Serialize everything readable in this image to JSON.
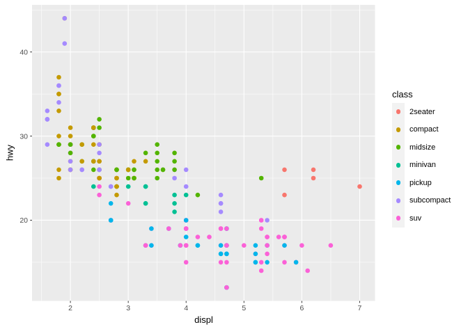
{
  "figure": {
    "background": "#FFFFFF",
    "panel_background": "#EBEBEB",
    "grid_color": "#FFFFFF",
    "axis_text_color": "#4D4D4D",
    "tick_mark_color": "#333333",
    "legend_key_background": "#F2F2F2"
  },
  "chart_data": {
    "type": "scatter",
    "title": "",
    "xlabel": "displ",
    "ylabel": "hwy",
    "x_ticks": [
      2,
      3,
      4,
      5,
      6,
      7
    ],
    "y_ticks": [
      20,
      30,
      40
    ],
    "x_minor_ticks": [
      1.5,
      2.5,
      3.5,
      4.5,
      5.5,
      6.5
    ],
    "y_minor_ticks": [
      15,
      25,
      35,
      45
    ],
    "x_domain": [
      1.337,
      7.265
    ],
    "y_domain": [
      10.4,
      45.6
    ],
    "grid": true,
    "legend_position": "right",
    "legend": {
      "title": "class",
      "entries": [
        {
          "label": "2seater",
          "color": "#F8766D"
        },
        {
          "label": "compact",
          "color": "#C49A00"
        },
        {
          "label": "midsize",
          "color": "#53B400"
        },
        {
          "label": "minivan",
          "color": "#00C094"
        },
        {
          "label": "pickup",
          "color": "#00B6EB"
        },
        {
          "label": "subcompact",
          "color": "#A58AFF"
        },
        {
          "label": "suv",
          "color": "#FB61D7"
        }
      ]
    },
    "points": [
      [
        1.8,
        29,
        "compact"
      ],
      [
        1.8,
        29,
        "compact"
      ],
      [
        2.0,
        31,
        "compact"
      ],
      [
        2.0,
        30,
        "compact"
      ],
      [
        2.8,
        26,
        "compact"
      ],
      [
        2.8,
        26,
        "compact"
      ],
      [
        3.1,
        27,
        "compact"
      ],
      [
        1.8,
        26,
        "compact"
      ],
      [
        1.8,
        25,
        "compact"
      ],
      [
        2.0,
        28,
        "compact"
      ],
      [
        2.0,
        27,
        "compact"
      ],
      [
        2.8,
        25,
        "compact"
      ],
      [
        2.8,
        25,
        "compact"
      ],
      [
        3.1,
        25,
        "compact"
      ],
      [
        3.1,
        25,
        "compact"
      ],
      [
        2.8,
        24,
        "midsize"
      ],
      [
        3.1,
        25,
        "midsize"
      ],
      [
        4.2,
        23,
        "midsize"
      ],
      [
        5.3,
        20,
        "suv"
      ],
      [
        5.3,
        15,
        "suv"
      ],
      [
        5.3,
        20,
        "suv"
      ],
      [
        5.7,
        17,
        "suv"
      ],
      [
        6.0,
        17,
        "suv"
      ],
      [
        5.7,
        26,
        "2seater"
      ],
      [
        5.7,
        23,
        "2seater"
      ],
      [
        6.2,
        26,
        "2seater"
      ],
      [
        6.2,
        25,
        "2seater"
      ],
      [
        7.0,
        24,
        "2seater"
      ],
      [
        5.3,
        19,
        "suv"
      ],
      [
        5.3,
        14,
        "suv"
      ],
      [
        5.7,
        15,
        "suv"
      ],
      [
        6.5,
        17,
        "suv"
      ],
      [
        2.4,
        27,
        "midsize"
      ],
      [
        2.4,
        30,
        "midsize"
      ],
      [
        3.1,
        26,
        "midsize"
      ],
      [
        3.5,
        29,
        "midsize"
      ],
      [
        3.6,
        26,
        "midsize"
      ],
      [
        2.4,
        24,
        "minivan"
      ],
      [
        3.0,
        24,
        "minivan"
      ],
      [
        3.3,
        22,
        "minivan"
      ],
      [
        3.3,
        22,
        "minivan"
      ],
      [
        3.3,
        24,
        "minivan"
      ],
      [
        3.3,
        24,
        "minivan"
      ],
      [
        3.3,
        17,
        "minivan"
      ],
      [
        3.8,
        22,
        "minivan"
      ],
      [
        3.8,
        21,
        "minivan"
      ],
      [
        3.8,
        23,
        "minivan"
      ],
      [
        4.0,
        23,
        "minivan"
      ],
      [
        3.7,
        19,
        "pickup"
      ],
      [
        3.9,
        17,
        "pickup"
      ],
      [
        3.9,
        17,
        "pickup"
      ],
      [
        4.7,
        19,
        "pickup"
      ],
      [
        4.7,
        19,
        "pickup"
      ],
      [
        4.7,
        12,
        "pickup"
      ],
      [
        5.2,
        17,
        "pickup"
      ],
      [
        5.2,
        15,
        "pickup"
      ],
      [
        3.9,
        17,
        "suv"
      ],
      [
        4.7,
        17,
        "suv"
      ],
      [
        4.7,
        12,
        "suv"
      ],
      [
        4.7,
        17,
        "suv"
      ],
      [
        4.7,
        16,
        "suv"
      ],
      [
        5.2,
        16,
        "suv"
      ],
      [
        5.7,
        18,
        "suv"
      ],
      [
        5.9,
        15,
        "suv"
      ],
      [
        4.7,
        16,
        "pickup"
      ],
      [
        4.7,
        12,
        "pickup"
      ],
      [
        4.7,
        17,
        "pickup"
      ],
      [
        4.7,
        17,
        "pickup"
      ],
      [
        4.7,
        16,
        "pickup"
      ],
      [
        5.2,
        15,
        "pickup"
      ],
      [
        5.2,
        16,
        "pickup"
      ],
      [
        5.7,
        17,
        "pickup"
      ],
      [
        5.9,
        15,
        "pickup"
      ],
      [
        4.6,
        17,
        "suv"
      ],
      [
        5.4,
        17,
        "suv"
      ],
      [
        5.4,
        18,
        "suv"
      ],
      [
        4.0,
        17,
        "suv"
      ],
      [
        4.0,
        19,
        "suv"
      ],
      [
        4.0,
        17,
        "suv"
      ],
      [
        4.0,
        19,
        "suv"
      ],
      [
        4.6,
        19,
        "suv"
      ],
      [
        4.2,
        17,
        "pickup"
      ],
      [
        4.2,
        17,
        "pickup"
      ],
      [
        4.6,
        16,
        "pickup"
      ],
      [
        4.6,
        16,
        "pickup"
      ],
      [
        4.6,
        17,
        "pickup"
      ],
      [
        5.4,
        15,
        "pickup"
      ],
      [
        5.4,
        17,
        "pickup"
      ],
      [
        3.8,
        26,
        "subcompact"
      ],
      [
        3.8,
        25,
        "subcompact"
      ],
      [
        4.0,
        26,
        "subcompact"
      ],
      [
        4.0,
        24,
        "subcompact"
      ],
      [
        4.6,
        21,
        "subcompact"
      ],
      [
        4.6,
        22,
        "subcompact"
      ],
      [
        4.6,
        23,
        "subcompact"
      ],
      [
        4.6,
        22,
        "subcompact"
      ],
      [
        5.4,
        20,
        "subcompact"
      ],
      [
        1.6,
        33,
        "subcompact"
      ],
      [
        1.6,
        32,
        "subcompact"
      ],
      [
        1.6,
        32,
        "subcompact"
      ],
      [
        1.6,
        29,
        "subcompact"
      ],
      [
        1.6,
        32,
        "subcompact"
      ],
      [
        1.8,
        34,
        "subcompact"
      ],
      [
        1.8,
        36,
        "subcompact"
      ],
      [
        1.8,
        36,
        "subcompact"
      ],
      [
        2.0,
        29,
        "subcompact"
      ],
      [
        2.4,
        26,
        "midsize"
      ],
      [
        2.4,
        27,
        "midsize"
      ],
      [
        2.4,
        30,
        "midsize"
      ],
      [
        2.4,
        31,
        "midsize"
      ],
      [
        2.5,
        26,
        "midsize"
      ],
      [
        2.5,
        26,
        "midsize"
      ],
      [
        3.3,
        28,
        "midsize"
      ],
      [
        2.0,
        26,
        "subcompact"
      ],
      [
        2.0,
        29,
        "subcompact"
      ],
      [
        2.0,
        28,
        "subcompact"
      ],
      [
        2.0,
        27,
        "subcompact"
      ],
      [
        2.7,
        24,
        "subcompact"
      ],
      [
        2.7,
        24,
        "subcompact"
      ],
      [
        3.0,
        22,
        "suv"
      ],
      [
        3.7,
        19,
        "suv"
      ],
      [
        4.0,
        20,
        "suv"
      ],
      [
        4.7,
        17,
        "suv"
      ],
      [
        4.7,
        12,
        "suv"
      ],
      [
        4.7,
        19,
        "suv"
      ],
      [
        5.7,
        18,
        "suv"
      ],
      [
        6.1,
        14,
        "suv"
      ],
      [
        4.0,
        15,
        "suv"
      ],
      [
        4.2,
        18,
        "suv"
      ],
      [
        4.4,
        18,
        "suv"
      ],
      [
        4.6,
        15,
        "suv"
      ],
      [
        5.4,
        17,
        "suv"
      ],
      [
        5.4,
        16,
        "suv"
      ],
      [
        5.4,
        18,
        "suv"
      ],
      [
        4.0,
        17,
        "suv"
      ],
      [
        4.0,
        19,
        "suv"
      ],
      [
        4.6,
        19,
        "suv"
      ],
      [
        5.0,
        17,
        "suv"
      ],
      [
        2.4,
        29,
        "compact"
      ],
      [
        2.4,
        27,
        "compact"
      ],
      [
        2.5,
        31,
        "midsize"
      ],
      [
        2.5,
        32,
        "midsize"
      ],
      [
        3.5,
        27,
        "midsize"
      ],
      [
        3.5,
        26,
        "midsize"
      ],
      [
        3.0,
        26,
        "midsize"
      ],
      [
        3.0,
        25,
        "midsize"
      ],
      [
        3.5,
        25,
        "midsize"
      ],
      [
        3.3,
        17,
        "suv"
      ],
      [
        3.3,
        17,
        "suv"
      ],
      [
        4.0,
        20,
        "suv"
      ],
      [
        5.6,
        18,
        "suv"
      ],
      [
        3.1,
        26,
        "midsize"
      ],
      [
        3.8,
        26,
        "midsize"
      ],
      [
        3.8,
        27,
        "midsize"
      ],
      [
        3.8,
        28,
        "midsize"
      ],
      [
        5.3,
        25,
        "midsize"
      ],
      [
        2.5,
        25,
        "suv"
      ],
      [
        2.5,
        24,
        "suv"
      ],
      [
        2.5,
        27,
        "suv"
      ],
      [
        2.5,
        25,
        "suv"
      ],
      [
        2.5,
        23,
        "suv"
      ],
      [
        2.2,
        26,
        "subcompact"
      ],
      [
        2.2,
        26,
        "subcompact"
      ],
      [
        2.5,
        26,
        "subcompact"
      ],
      [
        2.5,
        26,
        "subcompact"
      ],
      [
        2.5,
        25,
        "compact"
      ],
      [
        2.5,
        27,
        "compact"
      ],
      [
        2.5,
        25,
        "compact"
      ],
      [
        2.5,
        27,
        "compact"
      ],
      [
        2.7,
        20,
        "suv"
      ],
      [
        2.7,
        20,
        "suv"
      ],
      [
        3.4,
        19,
        "suv"
      ],
      [
        3.4,
        17,
        "suv"
      ],
      [
        4.0,
        20,
        "suv"
      ],
      [
        4.7,
        17,
        "suv"
      ],
      [
        2.2,
        29,
        "midsize"
      ],
      [
        2.2,
        27,
        "midsize"
      ],
      [
        2.4,
        31,
        "midsize"
      ],
      [
        2.4,
        31,
        "midsize"
      ],
      [
        3.0,
        26,
        "midsize"
      ],
      [
        3.0,
        26,
        "midsize"
      ],
      [
        3.5,
        28,
        "midsize"
      ],
      [
        2.2,
        27,
        "compact"
      ],
      [
        2.2,
        29,
        "compact"
      ],
      [
        2.4,
        31,
        "compact"
      ],
      [
        2.4,
        31,
        "compact"
      ],
      [
        3.0,
        26,
        "compact"
      ],
      [
        3.3,
        27,
        "compact"
      ],
      [
        1.8,
        30,
        "compact"
      ],
      [
        1.8,
        33,
        "compact"
      ],
      [
        1.8,
        35,
        "compact"
      ],
      [
        1.8,
        37,
        "compact"
      ],
      [
        1.8,
        35,
        "compact"
      ],
      [
        4.7,
        15,
        "suv"
      ],
      [
        5.7,
        18,
        "suv"
      ],
      [
        2.7,
        20,
        "pickup"
      ],
      [
        2.7,
        20,
        "pickup"
      ],
      [
        2.7,
        22,
        "pickup"
      ],
      [
        3.4,
        17,
        "pickup"
      ],
      [
        3.4,
        19,
        "pickup"
      ],
      [
        4.0,
        18,
        "pickup"
      ],
      [
        4.0,
        20,
        "pickup"
      ],
      [
        2.0,
        29,
        "compact"
      ],
      [
        2.0,
        26,
        "compact"
      ],
      [
        2.0,
        29,
        "compact"
      ],
      [
        2.0,
        29,
        "compact"
      ],
      [
        2.8,
        24,
        "compact"
      ],
      [
        1.9,
        44,
        "compact"
      ],
      [
        2.0,
        29,
        "compact"
      ],
      [
        2.0,
        26,
        "compact"
      ],
      [
        2.0,
        29,
        "compact"
      ],
      [
        2.0,
        29,
        "compact"
      ],
      [
        2.5,
        29,
        "compact"
      ],
      [
        2.5,
        29,
        "compact"
      ],
      [
        2.8,
        23,
        "compact"
      ],
      [
        2.8,
        24,
        "compact"
      ],
      [
        1.9,
        44,
        "subcompact"
      ],
      [
        1.9,
        41,
        "subcompact"
      ],
      [
        2.0,
        29,
        "subcompact"
      ],
      [
        2.0,
        26,
        "subcompact"
      ],
      [
        2.5,
        28,
        "subcompact"
      ],
      [
        2.5,
        29,
        "subcompact"
      ],
      [
        1.8,
        29,
        "midsize"
      ],
      [
        1.8,
        29,
        "midsize"
      ],
      [
        2.0,
        28,
        "midsize"
      ],
      [
        2.0,
        29,
        "midsize"
      ],
      [
        2.8,
        26,
        "midsize"
      ],
      [
        2.8,
        26,
        "midsize"
      ],
      [
        3.6,
        26,
        "midsize"
      ]
    ]
  }
}
